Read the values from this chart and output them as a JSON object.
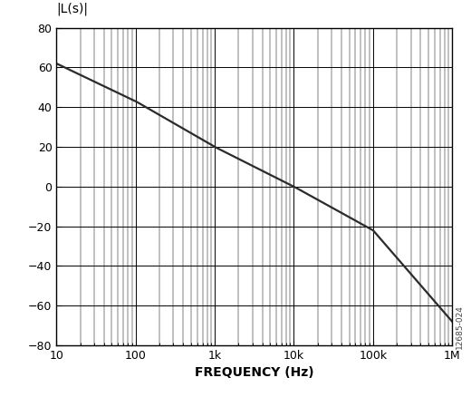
{
  "ylabel_annotation": "|L(s)|",
  "xlabel": "FREQUENCY (Hz)",
  "watermark": "12685-024",
  "xmin": 10,
  "xmax": 1000000,
  "ymin": -80,
  "ymax": 80,
  "yticks": [
    -80,
    -60,
    -40,
    -20,
    0,
    20,
    40,
    60,
    80
  ],
  "xtick_labels": [
    "10",
    "100",
    "1k",
    "10k",
    "100k",
    "1M"
  ],
  "xtick_values": [
    10,
    100,
    1000,
    10000,
    100000,
    1000000
  ],
  "line_color": "#2b2b2b",
  "line_width": 1.6,
  "grid_major_color": "#000000",
  "grid_minor_color": "#000000",
  "grid_major_lw": 0.7,
  "grid_minor_lw": 0.35,
  "background_color": "#ffffff",
  "mag_pts_freq": [
    10,
    100,
    1000,
    10000,
    100000,
    1000000
  ],
  "mag_pts_db": [
    62,
    43,
    20,
    0,
    -22,
    -68
  ],
  "tick_fontsize": 9,
  "xlabel_fontsize": 10,
  "annotation_fontsize": 10
}
